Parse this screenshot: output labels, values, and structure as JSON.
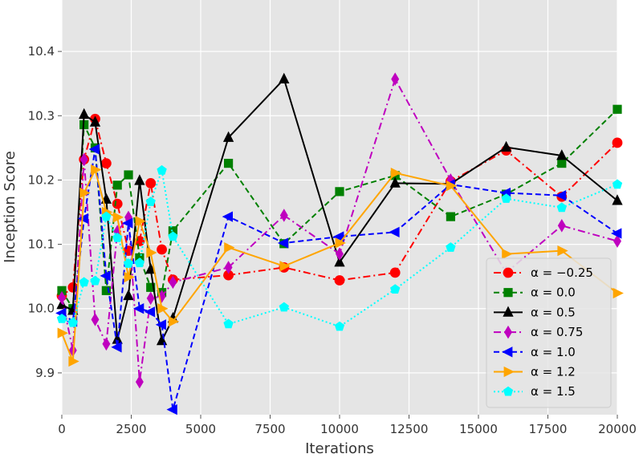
{
  "chart_data": {
    "type": "line",
    "title": "",
    "xlabel": "Iterations",
    "ylabel": "Inception Score",
    "xlim": [
      0,
      20000
    ],
    "ylim": [
      9.835,
      10.48
    ],
    "xticks": [
      0,
      2500,
      5000,
      7500,
      10000,
      12500,
      15000,
      17500,
      20000
    ],
    "xtick_labels": [
      "0",
      "2500",
      "5000",
      "7500",
      "10000",
      "12500",
      "15000",
      "17500",
      "20000"
    ],
    "yticks": [
      9.9,
      10.0,
      10.1,
      10.2,
      10.3,
      10.4
    ],
    "ytick_labels": [
      "9.9",
      "10.0",
      "10.1",
      "10.2",
      "10.3",
      "10.4"
    ],
    "grid": true,
    "legend_position": "lower-right",
    "series": [
      {
        "name": "α = −0.25",
        "color": "#ff0000",
        "linestyle": "dashdot",
        "marker": "circle",
        "x": [
          0,
          400,
          800,
          1200,
          1600,
          2000,
          2400,
          2800,
          3200,
          3600,
          4000,
          6000,
          8000,
          10000,
          12000,
          14000,
          16000,
          18000,
          20000
        ],
        "y": [
          10.02,
          10.033,
          10.232,
          10.295,
          10.226,
          10.163,
          10.09,
          10.105,
          10.195,
          10.092,
          10.045,
          10.052,
          10.064,
          10.044,
          10.056,
          10.198,
          10.246,
          10.174,
          10.258
        ]
      },
      {
        "name": "α = 0.0",
        "color": "#008000",
        "linestyle": "dashed",
        "marker": "square",
        "x": [
          0,
          400,
          800,
          1200,
          1600,
          2000,
          2400,
          2800,
          3200,
          3600,
          4000,
          6000,
          8000,
          10000,
          12000,
          14000,
          16000,
          18000,
          20000
        ],
        "y": [
          10.028,
          10.0,
          10.286,
          10.25,
          10.028,
          10.192,
          10.208,
          10.079,
          10.033,
          10.025,
          10.121,
          10.226,
          10.101,
          10.182,
          10.207,
          10.143,
          10.178,
          10.226,
          10.31
        ]
      },
      {
        "name": "α = 0.5",
        "color": "#000000",
        "linestyle": "solid",
        "marker": "triangle-up",
        "x": [
          0,
          400,
          800,
          1200,
          1600,
          2000,
          2400,
          2800,
          3200,
          3600,
          4000,
          6000,
          8000,
          10000,
          12000,
          14000,
          16000,
          18000,
          20000
        ],
        "y": [
          10.006,
          9.997,
          10.302,
          10.29,
          10.17,
          9.952,
          10.02,
          10.199,
          10.061,
          9.95,
          9.985,
          10.266,
          10.357,
          10.072,
          10.195,
          10.194,
          10.251,
          10.238,
          10.168
        ]
      },
      {
        "name": "α = 0.75",
        "color": "#bf00bf",
        "linestyle": "dashdot",
        "marker": "diamond",
        "x": [
          0,
          400,
          800,
          1200,
          1600,
          2000,
          2400,
          2800,
          3200,
          3600,
          4000,
          6000,
          8000,
          10000,
          12000,
          14000,
          16000,
          18000,
          20000
        ],
        "y": [
          10.017,
          9.935,
          10.232,
          9.983,
          9.945,
          10.12,
          10.142,
          9.886,
          10.016,
          10.019,
          10.041,
          10.064,
          10.145,
          10.085,
          10.357,
          10.2,
          10.056,
          10.129,
          10.105
        ]
      },
      {
        "name": "α = 1.0",
        "color": "#0000ff",
        "linestyle": "dashed",
        "marker": "triangle-left",
        "x": [
          0,
          400,
          800,
          1200,
          1600,
          2000,
          2400,
          2800,
          3200,
          3600,
          4000,
          6000,
          8000,
          10000,
          12000,
          14000,
          16000,
          18000,
          20000
        ],
        "y": [
          9.993,
          9.98,
          10.14,
          10.248,
          10.051,
          9.94,
          10.133,
          10.0,
          9.995,
          9.975,
          9.843,
          10.143,
          10.102,
          10.112,
          10.119,
          10.193,
          10.18,
          10.176,
          10.117
        ]
      },
      {
        "name": "α = 1.2",
        "color": "#ffa500",
        "linestyle": "solid",
        "marker": "triangle-right",
        "x": [
          0,
          400,
          800,
          1200,
          1600,
          2000,
          2400,
          2800,
          3200,
          3600,
          4000,
          6000,
          8000,
          10000,
          12000,
          14000,
          16000,
          18000,
          20000
        ],
        "y": [
          9.962,
          9.918,
          10.18,
          10.216,
          10.15,
          10.142,
          10.049,
          10.136,
          10.087,
          10.0,
          9.98,
          10.095,
          10.066,
          10.102,
          10.211,
          10.191,
          10.085,
          10.09,
          10.024
        ]
      },
      {
        "name": "α = 1.5",
        "color": "#00ffff",
        "linestyle": "dotted",
        "marker": "pentagon",
        "x": [
          0,
          400,
          800,
          1200,
          1600,
          2000,
          2400,
          2800,
          3200,
          3600,
          4000,
          6000,
          8000,
          10000,
          12000,
          14000,
          16000,
          18000,
          20000
        ],
        "y": [
          9.984,
          9.978,
          10.041,
          10.043,
          10.143,
          10.11,
          10.07,
          10.071,
          10.166,
          10.215,
          10.112,
          9.976,
          10.002,
          9.972,
          10.03,
          10.095,
          10.171,
          10.157,
          10.193
        ]
      }
    ]
  }
}
